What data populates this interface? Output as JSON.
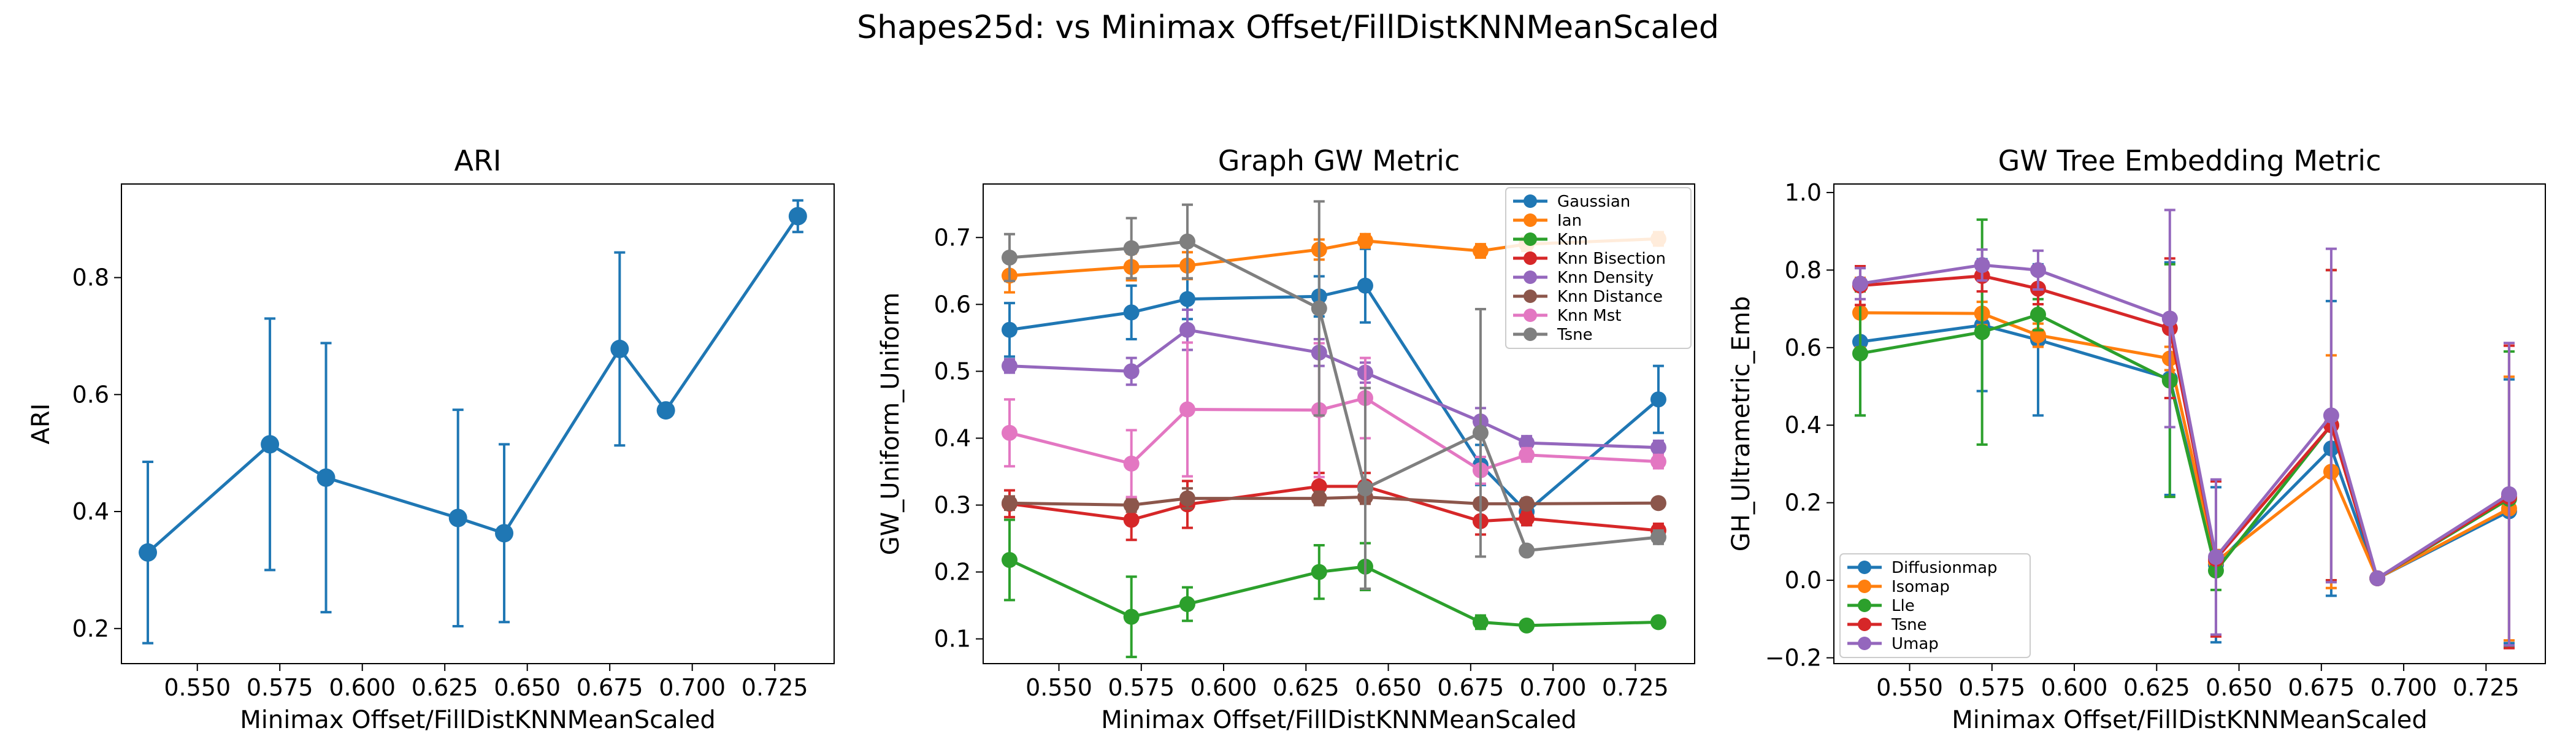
{
  "figure_title": "Shapes25d: vs Minimax Offset/FillDistKNNMeanScaled",
  "colors": {
    "blue": "#1f77b4",
    "orange": "#ff7f0e",
    "green": "#2ca02c",
    "red": "#d62728",
    "purple": "#9467bd",
    "brown": "#8c564b",
    "pink": "#e377c2",
    "gray": "#7f7f7f"
  },
  "chart_data": [
    {
      "type": "line",
      "title": "ARI",
      "xlabel": "Minimax Offset/FillDistKNNMeanScaled",
      "ylabel": "ARI",
      "xlim": [
        0.527,
        0.743
      ],
      "ylim": [
        0.14,
        0.96
      ],
      "xticks": [
        "0.550",
        "0.575",
        "0.600",
        "0.625",
        "0.650",
        "0.675",
        "0.700",
        "0.725"
      ],
      "yticks": [
        "0.2",
        "0.4",
        "0.6",
        "0.8"
      ],
      "x": [
        0.535,
        0.572,
        0.589,
        0.629,
        0.643,
        0.678,
        0.692,
        0.732
      ],
      "legend": false,
      "series": [
        {
          "name": "",
          "color": "#1f77b4",
          "values": [
            0.33,
            0.515,
            0.458,
            0.389,
            0.363,
            0.678,
            0.573,
            0.905
          ],
          "err": [
            0.155,
            0.215,
            0.23,
            0.185,
            0.152,
            0.165,
            0.0,
            0.027
          ]
        }
      ]
    },
    {
      "type": "line",
      "title": "Graph GW Metric",
      "xlabel": "Minimax Offset/FillDistKNNMeanScaled",
      "ylabel": "GW_Uniform_Uniform",
      "xlim": [
        0.527,
        0.743
      ],
      "ylim": [
        0.063,
        0.78
      ],
      "xticks": [
        "0.550",
        "0.575",
        "0.600",
        "0.625",
        "0.650",
        "0.675",
        "0.700",
        "0.725"
      ],
      "yticks": [
        "0.1",
        "0.2",
        "0.3",
        "0.4",
        "0.5",
        "0.6",
        "0.7"
      ],
      "x": [
        0.535,
        0.572,
        0.589,
        0.629,
        0.643,
        0.678,
        0.692,
        0.732
      ],
      "legend": true,
      "legend_position": "top-right",
      "series": [
        {
          "name": "Gaussian",
          "color": "#1f77b4",
          "values": [
            0.562,
            0.588,
            0.608,
            0.612,
            0.628,
            0.36,
            0.29,
            0.458
          ],
          "err": [
            0.04,
            0.04,
            0.03,
            0.03,
            0.055,
            0.03,
            0.02,
            0.05
          ]
        },
        {
          "name": "Ian",
          "color": "#ff7f0e",
          "values": [
            0.643,
            0.656,
            0.658,
            0.682,
            0.695,
            0.68,
            0.69,
            0.698
          ],
          "err": [
            0.025,
            0.02,
            0.02,
            0.015,
            0.01,
            0.01,
            0.01,
            0.01
          ]
        },
        {
          "name": "Knn",
          "color": "#2ca02c",
          "values": [
            0.218,
            0.133,
            0.152,
            0.2,
            0.208,
            0.125,
            0.12,
            0.125
          ],
          "err": [
            0.06,
            0.06,
            0.025,
            0.04,
            0.035,
            0.01,
            0.005,
            0.005
          ]
        },
        {
          "name": "Knn Bisection",
          "color": "#d62728",
          "values": [
            0.302,
            0.278,
            0.301,
            0.328,
            0.328,
            0.276,
            0.28,
            0.262
          ],
          "err": [
            0.02,
            0.03,
            0.035,
            0.02,
            0.02,
            0.02,
            0.01,
            0.01
          ]
        },
        {
          "name": "Knn Density",
          "color": "#9467bd",
          "values": [
            0.508,
            0.5,
            0.562,
            0.528,
            0.498,
            0.425,
            0.393,
            0.386
          ],
          "err": [
            0.01,
            0.02,
            0.03,
            0.02,
            0.015,
            0.02,
            0.01,
            0.01
          ]
        },
        {
          "name": "Knn Distance",
          "color": "#8c564b",
          "values": [
            0.303,
            0.3,
            0.31,
            0.31,
            0.312,
            0.302,
            0.302,
            0.303
          ],
          "err": [
            0.01,
            0.01,
            0.015,
            0.01,
            0.01,
            0.005,
            0.005,
            0.005
          ]
        },
        {
          "name": "Knn Mst",
          "color": "#e377c2",
          "values": [
            0.408,
            0.362,
            0.443,
            0.442,
            0.46,
            0.352,
            0.375,
            0.365
          ],
          "err": [
            0.05,
            0.05,
            0.1,
            0.1,
            0.06,
            0.02,
            0.01,
            0.01
          ]
        },
        {
          "name": "Tsne",
          "color": "#7f7f7f",
          "values": [
            0.67,
            0.684,
            0.694,
            0.594,
            0.325,
            0.408,
            0.232,
            0.252
          ],
          "err": [
            0.035,
            0.045,
            0.055,
            0.16,
            0.15,
            0.185,
            0.005,
            0.01
          ]
        }
      ]
    },
    {
      "type": "line",
      "title": "GW Tree Embedding Metric",
      "xlabel": "Minimax Offset/FillDistKNNMeanScaled",
      "ylabel": "GH_Ultrametric_Emb",
      "xlim": [
        0.527,
        0.743
      ],
      "ylim": [
        -0.215,
        1.022
      ],
      "xticks": [
        "0.550",
        "0.575",
        "0.600",
        "0.625",
        "0.650",
        "0.675",
        "0.700",
        "0.725"
      ],
      "yticks": [
        "−0.2",
        "0.0",
        "0.2",
        "0.4",
        "0.6",
        "0.8",
        "1.0"
      ],
      "x": [
        0.535,
        0.572,
        0.589,
        0.629,
        0.643,
        0.678,
        0.692,
        0.732
      ],
      "legend": true,
      "legend_position": "lower-left",
      "series": [
        {
          "name": "Diffusionmap",
          "color": "#1f77b4",
          "values": [
            0.615,
            0.658,
            0.62,
            0.52,
            0.04,
            0.34,
            0.005,
            0.178
          ],
          "err": [
            0.19,
            0.17,
            0.195,
            0.3,
            0.2,
            0.38,
            0.005,
            0.34
          ]
        },
        {
          "name": "Isomap",
          "color": "#ff7f0e",
          "values": [
            0.69,
            0.688,
            0.632,
            0.572,
            0.048,
            0.28,
            0.005,
            0.185
          ],
          "err": [
            0.09,
            0.03,
            0.03,
            0.03,
            0.03,
            0.3,
            0.005,
            0.34
          ]
        },
        {
          "name": "Lle",
          "color": "#2ca02c",
          "values": [
            0.585,
            0.64,
            0.685,
            0.515,
            0.025,
            0.4,
            0.005,
            0.21
          ],
          "err": [
            0.16,
            0.29,
            0.04,
            0.3,
            0.05,
            0.4,
            0.005,
            0.38
          ]
        },
        {
          "name": "Tsne",
          "color": "#d62728",
          "values": [
            0.76,
            0.785,
            0.752,
            0.65,
            0.055,
            0.4,
            0.005,
            0.215
          ],
          "err": [
            0.05,
            0.04,
            0.04,
            0.18,
            0.2,
            0.4,
            0.005,
            0.39
          ]
        },
        {
          "name": "Umap",
          "color": "#9467bd",
          "values": [
            0.765,
            0.813,
            0.8,
            0.675,
            0.06,
            0.425,
            0.005,
            0.222
          ],
          "err": [
            0.04,
            0.04,
            0.05,
            0.28,
            0.2,
            0.43,
            0.005,
            0.39
          ]
        }
      ]
    }
  ]
}
